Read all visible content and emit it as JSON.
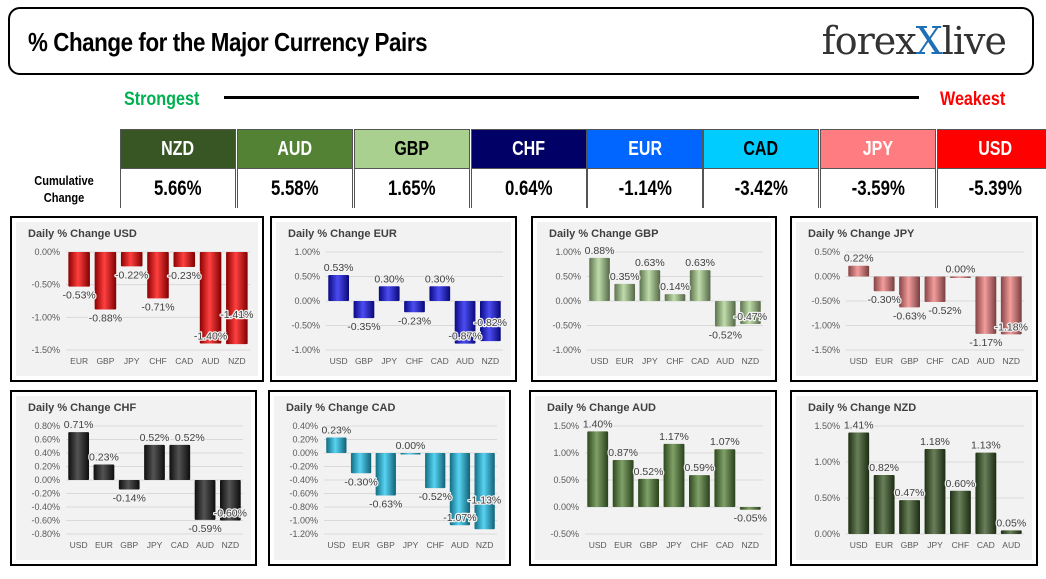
{
  "header": {
    "title": "% Change for the Major Currency Pairs",
    "logo": "forexlive"
  },
  "scale": {
    "strongest": "Strongest",
    "weakest": "Weakest",
    "row_label": "Cumulative Change"
  },
  "tiles": [
    {
      "currency": "NZD",
      "value": "5.66%",
      "bg": "#375623",
      "fg": "#ffffff"
    },
    {
      "currency": "AUD",
      "value": "5.58%",
      "bg": "#548235",
      "fg": "#ffffff"
    },
    {
      "currency": "GBP",
      "value": "1.65%",
      "bg": "#a9d08e",
      "fg": "#000000"
    },
    {
      "currency": "CHF",
      "value": "0.64%",
      "bg": "#000066",
      "fg": "#ffffff"
    },
    {
      "currency": "EUR",
      "value": "-1.14%",
      "bg": "#0066ff",
      "fg": "#ffffff"
    },
    {
      "currency": "CAD",
      "value": "-3.42%",
      "bg": "#00ccff",
      "fg": "#000000"
    },
    {
      "currency": "JPY",
      "value": "-3.59%",
      "bg": "#ff7c80",
      "fg": "#ffffff"
    },
    {
      "currency": "USD",
      "value": "-5.39%",
      "bg": "#ff0000",
      "fg": "#ffffff"
    }
  ],
  "chart_data": [
    {
      "type": "bar",
      "title": "Daily % Change USD",
      "categories": [
        "EUR",
        "GBP",
        "JPY",
        "CHF",
        "CAD",
        "AUD",
        "NZD"
      ],
      "values": [
        -0.53,
        -0.88,
        -0.22,
        -0.71,
        -0.23,
        -1.4,
        -1.41
      ],
      "ylim": [
        -1.5,
        0
      ],
      "ytick_step": 0.5,
      "color": "#ff0000",
      "grid": true
    },
    {
      "type": "bar",
      "title": "Daily % Change EUR",
      "categories": [
        "USD",
        "GBP",
        "JPY",
        "CHF",
        "CAD",
        "AUD",
        "NZD"
      ],
      "values": [
        0.53,
        -0.35,
        0.3,
        -0.23,
        0.3,
        -0.87,
        -0.82
      ],
      "ylim": [
        -1,
        1
      ],
      "ytick_step": 0.5,
      "color": "#1010ee",
      "grid": true
    },
    {
      "type": "bar",
      "title": "Daily % Change GBP",
      "categories": [
        "USD",
        "EUR",
        "JPY",
        "CHF",
        "CAD",
        "AUD",
        "NZD"
      ],
      "values": [
        0.88,
        0.35,
        0.63,
        0.14,
        0.63,
        -0.52,
        -0.47
      ],
      "ylim": [
        -1,
        1
      ],
      "ytick_step": 0.5,
      "color": "#a9d08e",
      "grid": true
    },
    {
      "type": "bar",
      "title": "Daily % Change JPY",
      "categories": [
        "USD",
        "EUR",
        "GBP",
        "CHF",
        "CAD",
        "AUD",
        "NZD"
      ],
      "values": [
        0.22,
        -0.3,
        -0.63,
        -0.52,
        0.0,
        -1.17,
        -1.18
      ],
      "ylim": [
        -1.5,
        0.5
      ],
      "ytick_step": 0.5,
      "color": "#f07c7c",
      "grid": true
    },
    {
      "type": "bar",
      "title": "Daily % Change CHF",
      "categories": [
        "USD",
        "EUR",
        "GBP",
        "JPY",
        "CAD",
        "AUD",
        "NZD"
      ],
      "values": [
        0.71,
        0.23,
        -0.14,
        0.52,
        0.52,
        -0.59,
        -0.6
      ],
      "ylim": [
        -0.8,
        0.8
      ],
      "ytick_step": 0.2,
      "color": "#1a1a1a",
      "grid": true
    },
    {
      "type": "bar",
      "title": "Daily % Change CAD",
      "categories": [
        "USD",
        "EUR",
        "GBP",
        "JPY",
        "CHF",
        "AUD",
        "NZD"
      ],
      "values": [
        0.23,
        -0.3,
        -0.63,
        0.0,
        -0.52,
        -1.07,
        -1.13
      ],
      "ylim": [
        -1.2,
        0.4
      ],
      "ytick_step": 0.2,
      "color": "#20c4ee",
      "grid": true
    },
    {
      "type": "bar",
      "title": "Daily % Change AUD",
      "categories": [
        "USD",
        "EUR",
        "GBP",
        "JPY",
        "CHF",
        "CAD",
        "NZD"
      ],
      "values": [
        1.4,
        0.87,
        0.52,
        1.17,
        0.59,
        1.07,
        -0.05
      ],
      "ylim": [
        -0.5,
        1.5
      ],
      "ytick_step": 0.5,
      "color": "#548235",
      "grid": true
    },
    {
      "type": "bar",
      "title": "Daily % Change NZD",
      "categories": [
        "USD",
        "EUR",
        "GBP",
        "JPY",
        "CHF",
        "CAD",
        "AUD"
      ],
      "values": [
        1.41,
        0.82,
        0.47,
        1.18,
        0.6,
        1.13,
        0.05
      ],
      "ylim": [
        0,
        1.5
      ],
      "ytick_step": 0.5,
      "color": "#375623",
      "grid": true
    }
  ]
}
